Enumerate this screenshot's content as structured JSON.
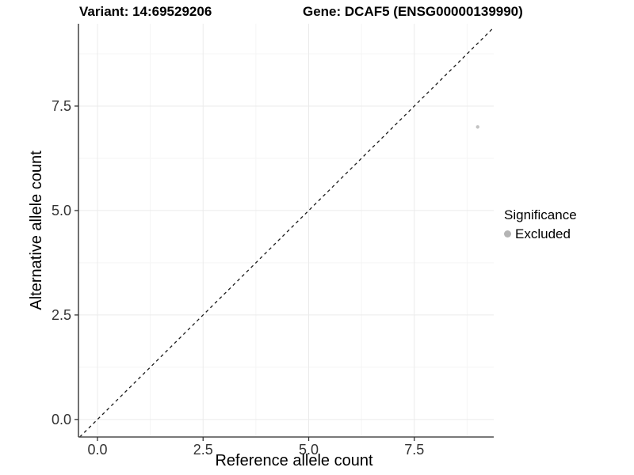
{
  "header": {
    "variant_title": "Variant: 14:69529206",
    "gene_title": "Gene: DCAF5 (ENSG00000139990)"
  },
  "chart_data": {
    "type": "scatter",
    "xlabel": "Reference allele count",
    "ylabel": "Alternative allele count",
    "xlim": [
      -0.45,
      9.38
    ],
    "ylim": [
      -0.42,
      9.47
    ],
    "x_ticks": [
      0.0,
      2.5,
      5.0,
      7.5
    ],
    "y_ticks": [
      0.0,
      2.5,
      5.0,
      7.5
    ],
    "x_tick_labels": [
      "0.0",
      "2.5",
      "5.0",
      "7.5"
    ],
    "y_tick_labels": [
      "0.0",
      "2.5",
      "5.0",
      "7.5"
    ],
    "x_minor_ticks": [
      1.25,
      3.75,
      6.25,
      8.75
    ],
    "y_minor_ticks": [
      1.25,
      3.75,
      6.25,
      8.75
    ],
    "grid": "major+minor",
    "legend_position": "right",
    "series": [
      {
        "name": "Excluded",
        "points": [
          {
            "x": 9,
            "y": 7
          }
        ],
        "point_radius": 2.2
      }
    ],
    "reference_line": {
      "kind": "identity",
      "slope": 1,
      "intercept": 0,
      "style": "dashed"
    }
  },
  "legend": {
    "title": "Significance",
    "items": [
      {
        "label": "Excluded",
        "color": "#b4b4b4"
      }
    ]
  },
  "colors": {
    "background": "#ffffff",
    "grid_major": "#ebebeb",
    "grid_minor": "#f5f5f5",
    "axis_line": "#4d4d4d",
    "tick_mark": "#333333",
    "tick_text": "#333333",
    "title_text": "#000000",
    "point": "#c3c3c3",
    "reference_line": "#1a1a1a"
  }
}
